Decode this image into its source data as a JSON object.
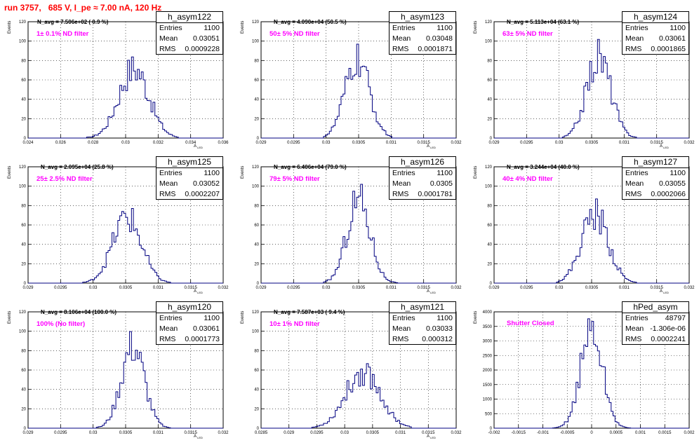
{
  "header": "run 3757,   685 V, I_pe ≈ 7.00 nA, 120 Hz",
  "colors": {
    "header": "#ff0000",
    "filter_label": "#ff00ff",
    "histogram_line": "#000080"
  },
  "chart_data": [
    {
      "type": "histogram",
      "name": "h_asym122",
      "entries": "1100",
      "mean": "0.03051",
      "rms": "0.0009228",
      "navg": "N_avg = 7.506e+02 ( 0.9 %)",
      "filter": "1± 0.1% ND filter",
      "xlim": [
        0.024,
        0.036
      ],
      "ylim": [
        0,
        120
      ],
      "xticks": [
        0.024,
        0.026,
        0.028,
        0.03,
        0.032,
        0.034,
        0.036
      ],
      "xtick_labels": [
        "0.024",
        "0.026",
        "0.028",
        "0.03",
        "0.032",
        "0.034",
        "0.036"
      ],
      "yticks": [
        0,
        20,
        40,
        60,
        80,
        100,
        120
      ],
      "ylabel": "Events",
      "xlabel": "A",
      "xlabel_sub": "LED",
      "dist": {
        "mu": 0.03051,
        "sigma": 0.0009228,
        "peak": 72,
        "xmin": 0.0276,
        "xmax": 0.0332
      }
    },
    {
      "type": "histogram",
      "name": "h_asym123",
      "entries": "1100",
      "mean": "0.03048",
      "rms": "0.0001871",
      "navg": "N_avg = 4.090e+04 (50.5 %)",
      "filter": "50± 5% ND filter",
      "xlim": [
        0.029,
        0.032
      ],
      "ylim": [
        0,
        120
      ],
      "xticks": [
        0.029,
        0.0295,
        0.03,
        0.0305,
        0.031,
        0.0315,
        0.032
      ],
      "xtick_labels": [
        "0.029",
        "0.0295",
        "0.03",
        "0.0305",
        "0.031",
        "0.0315",
        "0.032"
      ],
      "yticks": [
        0,
        20,
        40,
        60,
        80,
        100,
        120
      ],
      "ylabel": "Events",
      "xlabel": "A",
      "xlabel_sub": "LED",
      "dist": {
        "mu": 0.03048,
        "sigma": 0.0001871,
        "peak": 80,
        "xmin": 0.02995,
        "xmax": 0.031
      }
    },
    {
      "type": "histogram",
      "name": "h_asym124",
      "entries": "1100",
      "mean": "0.03061",
      "rms": "0.0001865",
      "navg": "N_avg = 5.113e+04 (63.1 %)",
      "filter": "63± 5% ND filter",
      "xlim": [
        0.029,
        0.032
      ],
      "ylim": [
        0,
        120
      ],
      "xticks": [
        0.029,
        0.0295,
        0.03,
        0.0305,
        0.031,
        0.0315,
        0.032
      ],
      "xtick_labels": [
        "0.029",
        "0.0295",
        "0.03",
        "0.0305",
        "0.031",
        "0.0315",
        "0.032"
      ],
      "yticks": [
        0,
        20,
        40,
        60,
        80,
        100,
        120
      ],
      "ylabel": "Events",
      "xlabel": "A",
      "xlabel_sub": "LED",
      "dist": {
        "mu": 0.03061,
        "sigma": 0.0001865,
        "peak": 84,
        "xmin": 0.03005,
        "xmax": 0.0312
      }
    },
    {
      "type": "histogram",
      "name": "h_asym125",
      "entries": "1100",
      "mean": "0.03052",
      "rms": "0.0002207",
      "navg": "N_avg = 2.095e+04 (25.8 %)",
      "filter": "25± 2.5% ND filter",
      "xlim": [
        0.029,
        0.032
      ],
      "ylim": [
        0,
        120
      ],
      "xticks": [
        0.029,
        0.0295,
        0.03,
        0.0305,
        0.031,
        0.0315,
        0.032
      ],
      "xtick_labels": [
        "0.029",
        "0.0295",
        "0.03",
        "0.0305",
        "0.031",
        "0.0315",
        "0.032"
      ],
      "yticks": [
        0,
        20,
        40,
        60,
        80,
        100,
        120
      ],
      "ylabel": "Events",
      "xlabel": "A",
      "xlabel_sub": "LED",
      "dist": {
        "mu": 0.03052,
        "sigma": 0.0002207,
        "peak": 68,
        "xmin": 0.02985,
        "xmax": 0.0312
      }
    },
    {
      "type": "histogram",
      "name": "h_asym126",
      "entries": "1100",
      "mean": "0.0305",
      "rms": "0.0001781",
      "navg": "N_avg = 6.406e+04 (79.0 %)",
      "filter": "79± 5% ND filter",
      "xlim": [
        0.029,
        0.032
      ],
      "ylim": [
        0,
        120
      ],
      "xticks": [
        0.029,
        0.0295,
        0.03,
        0.0305,
        0.031,
        0.0315,
        0.032
      ],
      "xtick_labels": [
        "0.029",
        "0.0295",
        "0.03",
        "0.0305",
        "0.031",
        "0.0315",
        "0.032"
      ],
      "yticks": [
        0,
        20,
        40,
        60,
        80,
        100,
        120
      ],
      "ylabel": "Events",
      "xlabel": "A",
      "xlabel_sub": "LED",
      "dist": {
        "mu": 0.0305,
        "sigma": 0.0001781,
        "peak": 88,
        "xmin": 0.02995,
        "xmax": 0.0311
      }
    },
    {
      "type": "histogram",
      "name": "h_asym127",
      "entries": "1100",
      "mean": "0.03055",
      "rms": "0.0002066",
      "navg": "N_avg = 3.244e+04 (40.0 %)",
      "filter": "40± 4% ND filter",
      "xlim": [
        0.029,
        0.032
      ],
      "ylim": [
        0,
        120
      ],
      "xticks": [
        0.029,
        0.0295,
        0.03,
        0.0305,
        0.031,
        0.0315,
        0.032
      ],
      "xtick_labels": [
        "0.029",
        "0.0295",
        "0.03",
        "0.0305",
        "0.031",
        "0.0315",
        "0.032"
      ],
      "yticks": [
        0,
        20,
        40,
        60,
        80,
        100,
        120
      ],
      "ylabel": "Events",
      "xlabel": "A",
      "xlabel_sub": "LED",
      "dist": {
        "mu": 0.03055,
        "sigma": 0.0002066,
        "peak": 72,
        "xmin": 0.02995,
        "xmax": 0.0312
      }
    },
    {
      "type": "histogram",
      "name": "h_asym120",
      "entries": "1100",
      "mean": "0.03061",
      "rms": "0.0001773",
      "navg": "N_avg = 8.106e+04 (100.0 %)",
      "filter": "100% (No filter)",
      "xlim": [
        0.029,
        0.032
      ],
      "ylim": [
        0,
        120
      ],
      "xticks": [
        0.029,
        0.0295,
        0.03,
        0.0305,
        0.031,
        0.0315,
        0.032
      ],
      "xtick_labels": [
        "0.029",
        "0.0295",
        "0.03",
        "0.0305",
        "0.031",
        "0.0315",
        "0.032"
      ],
      "yticks": [
        0,
        20,
        40,
        60,
        80,
        100,
        120
      ],
      "ylabel": "Events",
      "xlabel": "A",
      "xlabel_sub": "LED",
      "dist": {
        "mu": 0.03061,
        "sigma": 0.0001773,
        "peak": 84,
        "xmin": 0.03005,
        "xmax": 0.0312
      }
    },
    {
      "type": "histogram",
      "name": "h_asym121",
      "entries": "1100",
      "mean": "0.03033",
      "rms": "0.000312",
      "navg": "N_avg = 7.587e+03 ( 9.4 %)",
      "filter": "10± 1% ND filter",
      "xlim": [
        0.0285,
        0.032
      ],
      "ylim": [
        0,
        120
      ],
      "xticks": [
        0.0285,
        0.029,
        0.0295,
        0.03,
        0.0305,
        0.031,
        0.0315,
        0.032
      ],
      "xtick_labels": [
        "0.0285",
        "0.029",
        "0.0295",
        "0.03",
        "0.0305",
        "0.031",
        "0.0315",
        "0.032"
      ],
      "yticks": [
        0,
        20,
        40,
        60,
        80,
        100,
        120
      ],
      "ylabel": "Events",
      "xlabel": "A",
      "xlabel_sub": "LED",
      "dist": {
        "mu": 0.03033,
        "sigma": 0.000312,
        "peak": 58,
        "xmin": 0.0294,
        "xmax": 0.0312
      }
    },
    {
      "type": "histogram",
      "name": "hPed_asym",
      "entries": "48797",
      "mean": "-1.306e-06",
      "rms": "0.0002241",
      "navg": "",
      "filter": "Shutter Closed",
      "xlim": [
        -0.002,
        0.002
      ],
      "ylim": [
        0,
        4000
      ],
      "xticks": [
        -0.002,
        -0.0015,
        -0.001,
        -0.0005,
        0,
        0.0005,
        0.001,
        0.0015,
        0.002
      ],
      "xtick_labels": [
        "-0.002",
        "-0.0015",
        "-0.001",
        "-0.0005",
        "0",
        "0.0005",
        "0.001",
        "0.0015",
        "0.002"
      ],
      "yticks": [
        0,
        500,
        1000,
        1500,
        2000,
        2500,
        3000,
        3500,
        4000
      ],
      "ylabel": "Events",
      "xlabel": "",
      "xlabel_sub": "",
      "dist": {
        "mu": -1.3e-06,
        "sigma": 0.0002241,
        "peak": 3400,
        "xmin": -0.0008,
        "xmax": 0.0008
      }
    }
  ]
}
